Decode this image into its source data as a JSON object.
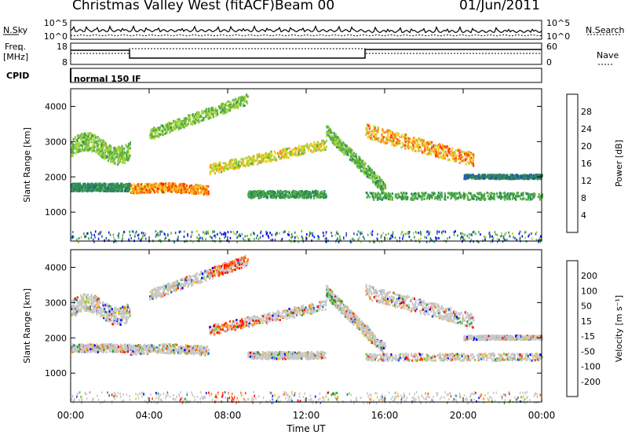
{
  "header": {
    "station": "Christmas Valley West (fitACF)",
    "beam": "Beam 00",
    "date": "01/Jun/2011"
  },
  "left_labels": {
    "nsky": "N.Sky",
    "freq": "Freq.",
    "freq_unit": "[MHz]",
    "cpid": "CPID"
  },
  "right_labels": {
    "nsearch": "N.Search",
    "nave": "Nave"
  },
  "cpid_text": "normal 150 IF",
  "xlabel": "Time UT",
  "colors": {
    "power_scale": [
      "#0000ff",
      "#2850b4",
      "#2e8b57",
      "#55b046",
      "#a9d23a",
      "#f2cf1c",
      "#ff8c1a",
      "#ff4500",
      "#ff0000"
    ],
    "velocity_scale": [
      "#0000ff",
      "#1e64c8",
      "#2ea02e",
      "#7ccd32",
      "#c8c8c8",
      "#c8c8c8",
      "#ffc000",
      "#ff8000",
      "#ff4000",
      "#ff0000"
    ]
  },
  "chart_data": [
    {
      "type": "line",
      "name": "noise",
      "ylabel_left": "N.Sky",
      "ylabel_right": "N.Search",
      "yticks_left": [
        "10^5",
        "10^0"
      ],
      "yticks_right": [
        "10^5",
        "10^0"
      ],
      "xlim": [
        "00:00",
        "24:00"
      ]
    },
    {
      "type": "line",
      "name": "frequency",
      "ylabel_left": "Freq. [MHz]",
      "ylabel_right": "Nave",
      "yticks_left": [
        "18",
        "8"
      ],
      "yticks_right": [
        "60",
        "0"
      ],
      "xlim": [
        "00:00",
        "24:00"
      ]
    },
    {
      "type": "heatmap",
      "name": "power",
      "ylabel": "Slant Range [km]",
      "yticks": [
        "1000",
        "2000",
        "3000",
        "4000"
      ],
      "ylim": [
        180,
        4500
      ],
      "xlabel": "",
      "colorbar_label": "Power [dB]",
      "colorbar_ticks": [
        "4",
        "8",
        "12",
        "16",
        "20",
        "24",
        "28"
      ],
      "colorbar_range": [
        0,
        32
      ]
    },
    {
      "type": "heatmap",
      "name": "velocity",
      "ylabel": "Slant Range [km]",
      "yticks": [
        "1000",
        "2000",
        "3000",
        "4000"
      ],
      "ylim": [
        180,
        4500
      ],
      "xlabel": "Time UT",
      "xticks": [
        "00:00",
        "04:00",
        "08:00",
        "12:00",
        "16:00",
        "20:00",
        "00:00"
      ],
      "colorbar_label": "Velocity [m s⁻¹]",
      "colorbar_ticks": [
        "200",
        "100",
        "50",
        "15",
        "-15",
        "-50",
        "-100",
        "-200"
      ],
      "colorbar_range": [
        -250,
        250
      ]
    }
  ]
}
